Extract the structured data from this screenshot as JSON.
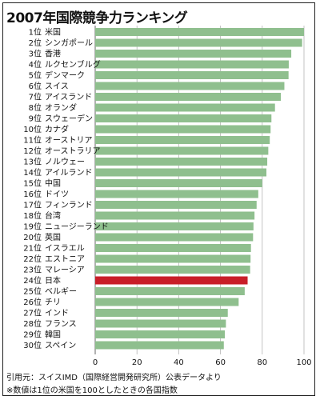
{
  "chart_data": {
    "type": "bar",
    "orientation": "horizontal",
    "title": "2007年国際競争力ランキング",
    "categories": [
      "1位 米国",
      "2位 シンガポール",
      "3位 香港",
      "4位 ルクセンブルグ",
      "5位 デンマーク",
      "6位 スイス",
      "7位 アイスランド",
      "8位 オランダ",
      "9位 スウェーデン",
      "10位 カナダ",
      "11位 オーストリア",
      "12位 オーストラリア",
      "13位 ノルウェー",
      "14位 アイルランド",
      "15位 中国",
      "16位 ドイツ",
      "17位 フィンランド",
      "18位 台湾",
      "19位 ニュージーランド",
      "20位 英国",
      "21位 イスラエル",
      "22位 エストニア",
      "23位 マレーシア",
      "24位 日本",
      "25位 ベルギー",
      "26位 チリ",
      "27位 インド",
      "28位 フランス",
      "29位 韓国",
      "30位 スペイン"
    ],
    "values": [
      100,
      99.1,
      93.9,
      92.7,
      92.6,
      90.6,
      88.9,
      86.1,
      84.4,
      84.0,
      83.6,
      82.9,
      82.4,
      82.0,
      80.0,
      78.1,
      77.3,
      76.3,
      75.8,
      75.6,
      74.6,
      74.4,
      74.2,
      73.0,
      71.6,
      68.7,
      63.5,
      62.6,
      62.1,
      61.6
    ],
    "highlight_index": 23,
    "xlim": [
      0,
      100
    ],
    "xticks": [
      0,
      20,
      40,
      60,
      80,
      100
    ],
    "grid": true,
    "colors": {
      "bar": "#8fbf8e",
      "highlight": "#c81e28",
      "grid": "#b5b5b5"
    }
  },
  "footer": {
    "source": "引用元：スイスIMD（国際経営開発研究所）公表データより",
    "note": "※数値は1位の米国を100としたときの各国指数"
  }
}
